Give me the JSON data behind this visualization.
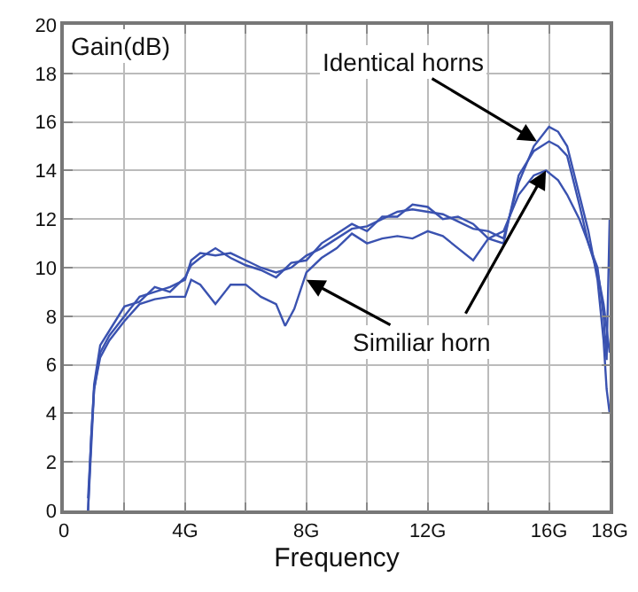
{
  "chart_data": {
    "type": "line",
    "xlabel": "Frequency",
    "ylabel": "Gain(dB)",
    "xlim": [
      0,
      18
    ],
    "xticks": [
      0,
      {
        "value": 2,
        "label": null
      },
      {
        "value": 4,
        "label": "4G"
      },
      {
        "value": 6,
        "label": null
      },
      {
        "value": 8,
        "label": "8G"
      },
      {
        "value": 10,
        "label": null
      },
      {
        "value": 12,
        "label": "12G"
      },
      {
        "value": 14,
        "label": null
      },
      {
        "value": 16,
        "label": "16G"
      },
      {
        "value": 18,
        "label": "18G"
      }
    ],
    "ylim": [
      0,
      20
    ],
    "yticks": [
      0,
      2,
      4,
      6,
      8,
      10,
      12,
      14,
      16,
      18,
      20
    ],
    "grid": true,
    "marker": "none",
    "line_style": "solid",
    "series": [
      {
        "color": "#3a52b0",
        "x": [
          0.8,
          0.9,
          1.0,
          1.2,
          1.5,
          2,
          2.5,
          3,
          3.5,
          4,
          4.2,
          4.5,
          5,
          5.5,
          6,
          6.5,
          7,
          7.5,
          8,
          8.5,
          9,
          9.5,
          10,
          10.5,
          11,
          11.5,
          12,
          12.5,
          13,
          13.5,
          14,
          14.5,
          15,
          15.5,
          16,
          16.3,
          16.6,
          17,
          17.3,
          17.6,
          17.8,
          17.9,
          18
        ],
        "values": [
          0,
          3,
          5,
          6.5,
          7.2,
          8,
          8.8,
          9,
          9.2,
          9.5,
          10.3,
          10.6,
          10.5,
          10.6,
          10.3,
          10,
          9.8,
          10,
          10.5,
          10.8,
          11.2,
          11.6,
          11.7,
          12,
          12.3,
          12.4,
          12.3,
          12.2,
          11.9,
          11.6,
          11.5,
          11.2,
          13.5,
          15,
          15.8,
          15.6,
          15,
          13,
          11.5,
          9.5,
          7,
          5,
          4
        ]
      },
      {
        "color": "#3a52b0",
        "x": [
          0.8,
          1.0,
          1.2,
          1.5,
          2,
          2.5,
          3,
          3.5,
          4,
          4.2,
          4.5,
          5,
          5.5,
          6,
          6.5,
          7,
          7.5,
          8,
          8.5,
          9,
          9.5,
          10,
          10.5,
          11,
          11.5,
          12,
          12.5,
          13,
          13.5,
          14,
          14.5,
          15,
          15.5,
          16,
          16.3,
          16.6,
          17,
          17.3,
          17.6,
          17.8,
          17.9,
          18
        ],
        "values": [
          0.5,
          5.2,
          6.8,
          7.4,
          8.4,
          8.6,
          9.2,
          9.0,
          9.6,
          10.1,
          10.4,
          10.8,
          10.4,
          10.1,
          9.9,
          9.6,
          10.2,
          10.3,
          11.0,
          11.4,
          11.8,
          11.5,
          12.1,
          12.1,
          12.6,
          12.5,
          12.0,
          12.1,
          11.8,
          11.2,
          11.0,
          13.8,
          14.8,
          15.2,
          15.0,
          14.6,
          12.6,
          11.0,
          10.0,
          8.0,
          6.2,
          12.0
        ]
      },
      {
        "color": "#3a52b0",
        "x": [
          0.8,
          1.0,
          1.2,
          1.5,
          2,
          2.5,
          3,
          3.5,
          4,
          4.2,
          4.5,
          5,
          5.5,
          6,
          6.5,
          7,
          7.3,
          7.6,
          8,
          8.5,
          9,
          9.5,
          10,
          10.5,
          11,
          11.5,
          12,
          12.5,
          13,
          13.5,
          14,
          14.5,
          15,
          15.5,
          15.9,
          16.3,
          16.6,
          17,
          17.3,
          17.6,
          17.8,
          18
        ],
        "values": [
          0,
          5,
          6.3,
          7,
          7.8,
          8.5,
          8.7,
          8.8,
          8.8,
          9.5,
          9.3,
          8.5,
          9.3,
          9.3,
          8.8,
          8.5,
          7.6,
          8.3,
          9.8,
          10.4,
          10.8,
          11.4,
          11,
          11.2,
          11.3,
          11.2,
          11.5,
          11.3,
          10.8,
          10.3,
          11.2,
          11.5,
          13,
          13.8,
          14,
          13.6,
          13,
          12,
          11,
          9.8,
          8.5,
          6.5
        ]
      }
    ],
    "annotations": [
      {
        "text": "Identical horns",
        "x": 15.6,
        "y": 15.2
      },
      {
        "text": "Similiar horn",
        "x": 8,
        "y": 9.5
      }
    ]
  }
}
